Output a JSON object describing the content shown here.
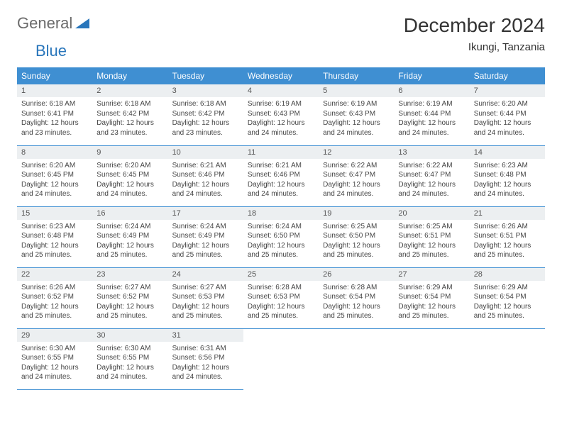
{
  "logo": {
    "text1": "General",
    "text2": "Blue",
    "text1_color": "#6b6b6b",
    "text2_color": "#2976bb",
    "mark_color": "#2976bb"
  },
  "title": "December 2024",
  "location": "Ikungi, Tanzania",
  "header_bg": "#3f8fd2",
  "header_text_color": "#ffffff",
  "daynum_bg": "#eceff1",
  "border_color": "#3f8fd2",
  "weekdays": [
    "Sunday",
    "Monday",
    "Tuesday",
    "Wednesday",
    "Thursday",
    "Friday",
    "Saturday"
  ],
  "days": [
    {
      "n": "1",
      "sr": "6:18 AM",
      "ss": "6:41 PM",
      "dl": "12 hours and 23 minutes."
    },
    {
      "n": "2",
      "sr": "6:18 AM",
      "ss": "6:42 PM",
      "dl": "12 hours and 23 minutes."
    },
    {
      "n": "3",
      "sr": "6:18 AM",
      "ss": "6:42 PM",
      "dl": "12 hours and 23 minutes."
    },
    {
      "n": "4",
      "sr": "6:19 AM",
      "ss": "6:43 PM",
      "dl": "12 hours and 24 minutes."
    },
    {
      "n": "5",
      "sr": "6:19 AM",
      "ss": "6:43 PM",
      "dl": "12 hours and 24 minutes."
    },
    {
      "n": "6",
      "sr": "6:19 AM",
      "ss": "6:44 PM",
      "dl": "12 hours and 24 minutes."
    },
    {
      "n": "7",
      "sr": "6:20 AM",
      "ss": "6:44 PM",
      "dl": "12 hours and 24 minutes."
    },
    {
      "n": "8",
      "sr": "6:20 AM",
      "ss": "6:45 PM",
      "dl": "12 hours and 24 minutes."
    },
    {
      "n": "9",
      "sr": "6:20 AM",
      "ss": "6:45 PM",
      "dl": "12 hours and 24 minutes."
    },
    {
      "n": "10",
      "sr": "6:21 AM",
      "ss": "6:46 PM",
      "dl": "12 hours and 24 minutes."
    },
    {
      "n": "11",
      "sr": "6:21 AM",
      "ss": "6:46 PM",
      "dl": "12 hours and 24 minutes."
    },
    {
      "n": "12",
      "sr": "6:22 AM",
      "ss": "6:47 PM",
      "dl": "12 hours and 24 minutes."
    },
    {
      "n": "13",
      "sr": "6:22 AM",
      "ss": "6:47 PM",
      "dl": "12 hours and 24 minutes."
    },
    {
      "n": "14",
      "sr": "6:23 AM",
      "ss": "6:48 PM",
      "dl": "12 hours and 24 minutes."
    },
    {
      "n": "15",
      "sr": "6:23 AM",
      "ss": "6:48 PM",
      "dl": "12 hours and 25 minutes."
    },
    {
      "n": "16",
      "sr": "6:24 AM",
      "ss": "6:49 PM",
      "dl": "12 hours and 25 minutes."
    },
    {
      "n": "17",
      "sr": "6:24 AM",
      "ss": "6:49 PM",
      "dl": "12 hours and 25 minutes."
    },
    {
      "n": "18",
      "sr": "6:24 AM",
      "ss": "6:50 PM",
      "dl": "12 hours and 25 minutes."
    },
    {
      "n": "19",
      "sr": "6:25 AM",
      "ss": "6:50 PM",
      "dl": "12 hours and 25 minutes."
    },
    {
      "n": "20",
      "sr": "6:25 AM",
      "ss": "6:51 PM",
      "dl": "12 hours and 25 minutes."
    },
    {
      "n": "21",
      "sr": "6:26 AM",
      "ss": "6:51 PM",
      "dl": "12 hours and 25 minutes."
    },
    {
      "n": "22",
      "sr": "6:26 AM",
      "ss": "6:52 PM",
      "dl": "12 hours and 25 minutes."
    },
    {
      "n": "23",
      "sr": "6:27 AM",
      "ss": "6:52 PM",
      "dl": "12 hours and 25 minutes."
    },
    {
      "n": "24",
      "sr": "6:27 AM",
      "ss": "6:53 PM",
      "dl": "12 hours and 25 minutes."
    },
    {
      "n": "25",
      "sr": "6:28 AM",
      "ss": "6:53 PM",
      "dl": "12 hours and 25 minutes."
    },
    {
      "n": "26",
      "sr": "6:28 AM",
      "ss": "6:54 PM",
      "dl": "12 hours and 25 minutes."
    },
    {
      "n": "27",
      "sr": "6:29 AM",
      "ss": "6:54 PM",
      "dl": "12 hours and 25 minutes."
    },
    {
      "n": "28",
      "sr": "6:29 AM",
      "ss": "6:54 PM",
      "dl": "12 hours and 25 minutes."
    },
    {
      "n": "29",
      "sr": "6:30 AM",
      "ss": "6:55 PM",
      "dl": "12 hours and 24 minutes."
    },
    {
      "n": "30",
      "sr": "6:30 AM",
      "ss": "6:55 PM",
      "dl": "12 hours and 24 minutes."
    },
    {
      "n": "31",
      "sr": "6:31 AM",
      "ss": "6:56 PM",
      "dl": "12 hours and 24 minutes."
    }
  ],
  "labels": {
    "sunrise": "Sunrise:",
    "sunset": "Sunset:",
    "daylight": "Daylight:"
  },
  "start_weekday": 0,
  "total_cells": 35
}
